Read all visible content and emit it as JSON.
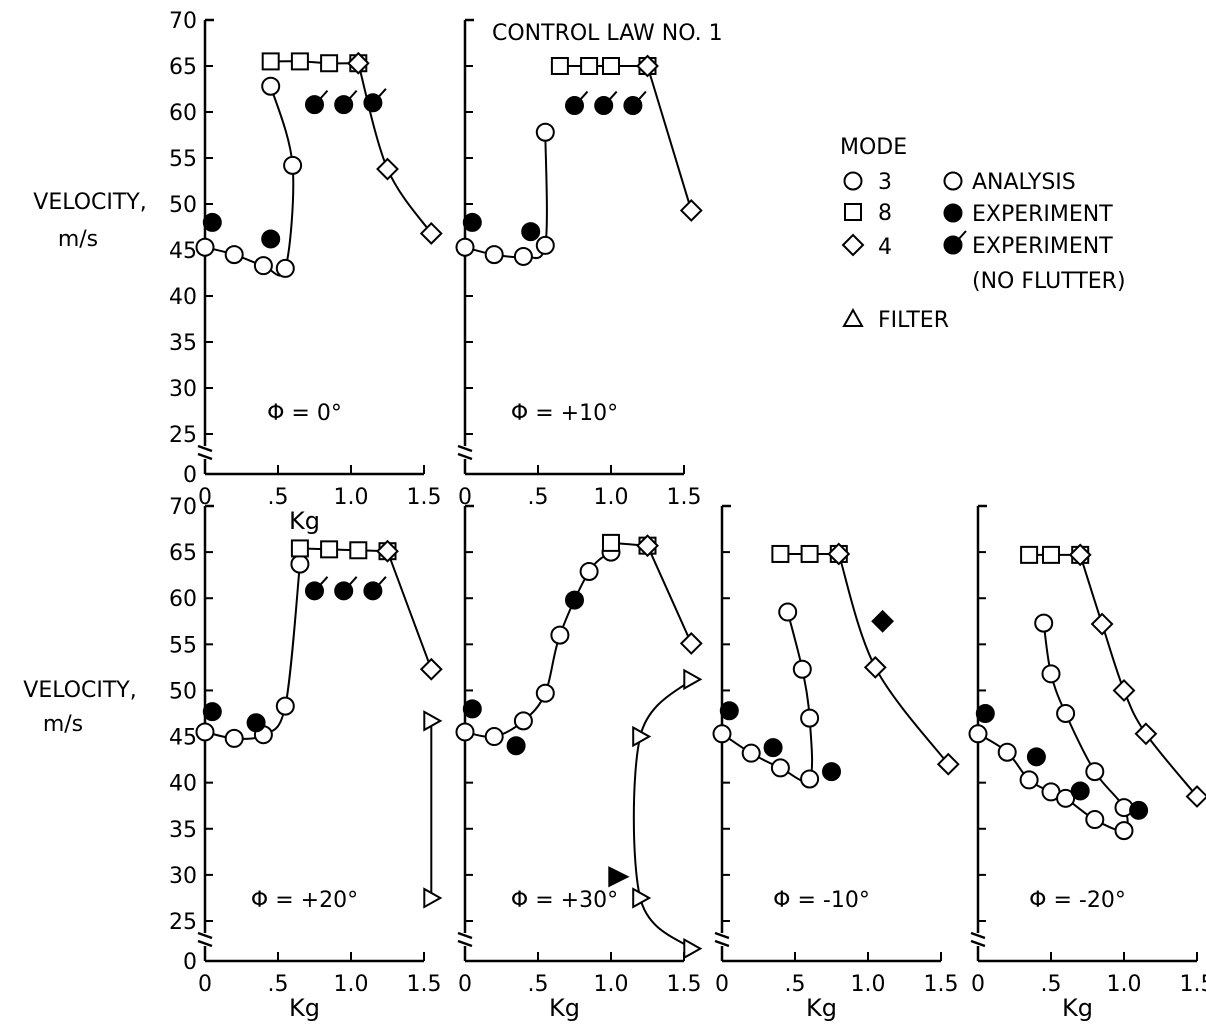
{
  "title": "CONTROL LAW NO. 1",
  "ylabel": [
    "VELOCITY,",
    "m/s"
  ],
  "xlabel": "Kg",
  "y_ticks": [
    "0",
    "25",
    "30",
    "35",
    "40",
    "45",
    "50",
    "55",
    "60",
    "65",
    "70"
  ],
  "x_ticks": [
    "0",
    ".5",
    "1.0",
    "1.5"
  ],
  "legend": {
    "heading": "MODE",
    "modes": [
      {
        "symbol": "circle",
        "label": "3"
      },
      {
        "symbol": "square",
        "label": "8"
      },
      {
        "symbol": "diamond",
        "label": "4"
      }
    ],
    "types": [
      {
        "symbol": "open-circle",
        "label": "ANALYSIS"
      },
      {
        "symbol": "filled-circle",
        "label": "EXPERIMENT"
      },
      {
        "symbol": "filled-circle-tick",
        "label": "EXPERIMENT",
        "label2": "(NO FLUTTER)"
      }
    ],
    "filter": {
      "symbol": "triangle",
      "label": "FILTER"
    }
  },
  "chart_data": [
    {
      "type": "scatter",
      "annotation": "Φ = 0°",
      "xlim": [
        0,
        1.5
      ],
      "ylim": [
        25,
        70
      ],
      "y_axis_break": true,
      "series": [
        {
          "mode": "3",
          "kind": "analysis",
          "points": [
            [
              0.0,
              45.3
            ],
            [
              0.2,
              44.5
            ],
            [
              0.4,
              43.3
            ],
            [
              0.55,
              43.0
            ],
            [
              0.6,
              54.2
            ],
            [
              0.45,
              62.8
            ]
          ]
        },
        {
          "mode": "8",
          "kind": "analysis",
          "points": [
            [
              0.45,
              65.5
            ],
            [
              0.65,
              65.5
            ],
            [
              0.85,
              65.3
            ],
            [
              1.05,
              65.3
            ]
          ]
        },
        {
          "mode": "4",
          "kind": "analysis",
          "points": [
            [
              1.05,
              65.3
            ],
            [
              1.25,
              53.8
            ],
            [
              1.55,
              46.8
            ]
          ]
        },
        {
          "kind": "experiment",
          "points": [
            [
              0.05,
              48.0
            ],
            [
              0.45,
              46.2
            ]
          ]
        },
        {
          "kind": "experiment_no_flutter",
          "points": [
            [
              0.75,
              60.8
            ],
            [
              0.95,
              60.8
            ],
            [
              1.15,
              61.0
            ]
          ]
        }
      ]
    },
    {
      "type": "scatter",
      "annotation": "Φ = +10°",
      "xlim": [
        0,
        1.5
      ],
      "ylim": [
        25,
        70
      ],
      "y_axis_break": true,
      "series": [
        {
          "mode": "3",
          "kind": "analysis",
          "points": [
            [
              0.0,
              45.3
            ],
            [
              0.2,
              44.5
            ],
            [
              0.4,
              44.3
            ],
            [
              0.55,
              45.5
            ],
            [
              0.55,
              57.8
            ]
          ]
        },
        {
          "mode": "8",
          "kind": "analysis",
          "points": [
            [
              0.65,
              65.0
            ],
            [
              0.85,
              65.0
            ],
            [
              1.0,
              65.0
            ],
            [
              1.25,
              65.0
            ]
          ]
        },
        {
          "mode": "4",
          "kind": "analysis",
          "points": [
            [
              1.25,
              65.0
            ],
            [
              1.55,
              49.3
            ]
          ]
        },
        {
          "kind": "experiment",
          "points": [
            [
              0.05,
              48.0
            ],
            [
              0.45,
              47.0
            ]
          ]
        },
        {
          "kind": "experiment_no_flutter",
          "points": [
            [
              0.75,
              60.7
            ],
            [
              0.95,
              60.7
            ],
            [
              1.15,
              60.7
            ]
          ]
        }
      ]
    },
    {
      "type": "scatter",
      "annotation": "Φ = +20°",
      "xlim": [
        0,
        1.5
      ],
      "ylim": [
        25,
        70
      ],
      "y_axis_break": true,
      "series": [
        {
          "mode": "3",
          "kind": "analysis",
          "points": [
            [
              0.0,
              45.5
            ],
            [
              0.2,
              44.8
            ],
            [
              0.4,
              45.2
            ],
            [
              0.55,
              48.3
            ],
            [
              0.65,
              63.7
            ]
          ]
        },
        {
          "mode": "8",
          "kind": "analysis",
          "points": [
            [
              0.65,
              65.4
            ],
            [
              0.85,
              65.3
            ],
            [
              1.05,
              65.2
            ],
            [
              1.25,
              65.1
            ]
          ]
        },
        {
          "mode": "4",
          "kind": "analysis",
          "points": [
            [
              1.25,
              65.1
            ],
            [
              1.55,
              52.3
            ]
          ]
        },
        {
          "kind": "filter",
          "points": [
            [
              1.55,
              46.7
            ],
            [
              1.55,
              27.5
            ]
          ]
        },
        {
          "kind": "experiment",
          "points": [
            [
              0.05,
              47.7
            ],
            [
              0.35,
              46.5
            ]
          ]
        },
        {
          "kind": "experiment_no_flutter",
          "points": [
            [
              0.75,
              60.8
            ],
            [
              0.95,
              60.8
            ],
            [
              1.15,
              60.8
            ]
          ]
        }
      ]
    },
    {
      "type": "scatter",
      "annotation": "Φ = +30°",
      "xlim": [
        0,
        1.5
      ],
      "ylim": [
        25,
        70
      ],
      "y_axis_break": true,
      "series": [
        {
          "mode": "3",
          "kind": "analysis",
          "points": [
            [
              0.0,
              45.5
            ],
            [
              0.2,
              45.0
            ],
            [
              0.4,
              46.7
            ],
            [
              0.55,
              49.7
            ],
            [
              0.65,
              56.0
            ],
            [
              0.85,
              62.9
            ],
            [
              1.0,
              65.0
            ]
          ]
        },
        {
          "mode": "8",
          "kind": "analysis",
          "points": [
            [
              1.0,
              66.0
            ],
            [
              1.25,
              65.7
            ]
          ]
        },
        {
          "mode": "4",
          "kind": "analysis",
          "points": [
            [
              1.25,
              65.7
            ],
            [
              1.55,
              55.1
            ]
          ]
        },
        {
          "kind": "filter",
          "points": [
            [
              1.55,
              51.2
            ],
            [
              1.2,
              45.0
            ],
            [
              1.2,
              27.5
            ],
            [
              1.55,
              22.0
            ]
          ]
        },
        {
          "kind": "filter_experiment",
          "points": [
            [
              1.05,
              29.8
            ]
          ]
        },
        {
          "kind": "experiment",
          "points": [
            [
              0.05,
              48.0
            ],
            [
              0.35,
              44.0
            ],
            [
              0.75,
              59.8
            ]
          ]
        }
      ]
    },
    {
      "type": "scatter",
      "annotation": "Φ = -10°",
      "xlim": [
        0,
        1.5
      ],
      "ylim": [
        25,
        70
      ],
      "y_axis_break": true,
      "series": [
        {
          "mode": "3",
          "kind": "analysis",
          "points": [
            [
              0.0,
              45.3
            ],
            [
              0.2,
              43.2
            ],
            [
              0.4,
              41.6
            ],
            [
              0.6,
              40.4
            ],
            [
              0.6,
              47.0
            ],
            [
              0.55,
              52.3
            ],
            [
              0.45,
              58.5
            ]
          ]
        },
        {
          "mode": "8",
          "kind": "analysis",
          "points": [
            [
              0.4,
              64.8
            ],
            [
              0.6,
              64.8
            ],
            [
              0.8,
              64.8
            ]
          ]
        },
        {
          "mode": "4",
          "kind": "analysis",
          "points": [
            [
              0.8,
              64.8
            ],
            [
              1.05,
              52.5
            ],
            [
              1.55,
              42.0
            ]
          ]
        },
        {
          "kind": "experiment",
          "points": [
            [
              0.05,
              47.8
            ],
            [
              0.35,
              43.8
            ],
            [
              0.75,
              41.2
            ]
          ]
        },
        {
          "kind": "experiment_mode4",
          "points": [
            [
              1.1,
              57.5
            ]
          ]
        }
      ]
    },
    {
      "type": "scatter",
      "annotation": "Φ = -20°",
      "xlim": [
        0,
        1.5
      ],
      "ylim": [
        25,
        70
      ],
      "y_axis_break": true,
      "series": [
        {
          "mode": "3",
          "kind": "analysis",
          "points": [
            [
              0.0,
              45.3
            ],
            [
              0.2,
              43.3
            ],
            [
              0.35,
              40.3
            ],
            [
              0.5,
              39.0
            ],
            [
              0.6,
              38.3
            ],
            [
              0.8,
              36.0
            ],
            [
              1.0,
              34.8
            ],
            [
              1.0,
              37.3
            ],
            [
              0.8,
              41.2
            ],
            [
              0.6,
              47.5
            ],
            [
              0.5,
              51.8
            ],
            [
              0.45,
              57.3
            ]
          ]
        },
        {
          "mode": "8",
          "kind": "analysis",
          "points": [
            [
              0.35,
              64.7
            ],
            [
              0.5,
              64.7
            ],
            [
              0.7,
              64.7
            ]
          ]
        },
        {
          "mode": "4",
          "kind": "analysis",
          "points": [
            [
              0.7,
              64.7
            ],
            [
              0.85,
              57.2
            ],
            [
              1.0,
              50.0
            ],
            [
              1.15,
              45.3
            ],
            [
              1.5,
              38.5
            ]
          ]
        },
        {
          "kind": "experiment",
          "points": [
            [
              0.05,
              47.5
            ],
            [
              0.4,
              42.8
            ],
            [
              0.7,
              39.1
            ],
            [
              1.1,
              37.0
            ]
          ]
        }
      ]
    }
  ]
}
